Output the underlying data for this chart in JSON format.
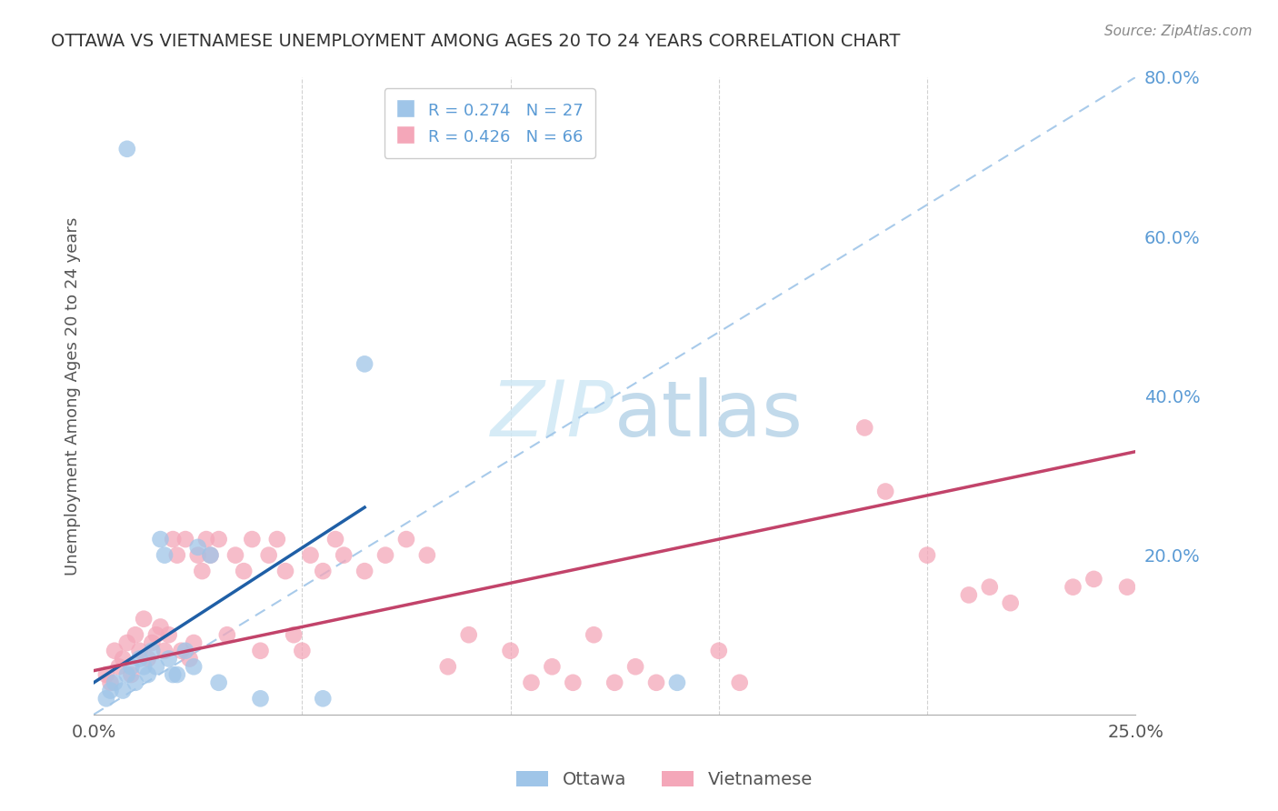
{
  "title": "OTTAWA VS VIETNAMESE UNEMPLOYMENT AMONG AGES 20 TO 24 YEARS CORRELATION CHART",
  "source": "Source: ZipAtlas.com",
  "ylabel": "Unemployment Among Ages 20 to 24 years",
  "xlim": [
    0.0,
    0.25
  ],
  "ylim": [
    0.0,
    0.8
  ],
  "xticks": [
    0.0,
    0.05,
    0.1,
    0.15,
    0.2,
    0.25
  ],
  "xtick_labels": [
    "0.0%",
    "",
    "",
    "",
    "",
    "25.0%"
  ],
  "yticks": [
    0.0,
    0.2,
    0.4,
    0.6,
    0.8
  ],
  "ytick_labels": [
    "",
    "20.0%",
    "40.0%",
    "60.0%",
    "80.0%"
  ],
  "ottawa_R": 0.274,
  "ottawa_N": 27,
  "vietnamese_R": 0.426,
  "vietnamese_N": 66,
  "ottawa_color": "#9fc5e8",
  "vietnamese_color": "#f4a7b9",
  "ottawa_line_color": "#1f5fa6",
  "vietnamese_line_color": "#c2436a",
  "diagonal_color": "#9fc5e8",
  "background_color": "#ffffff",
  "grid_color": "#cccccc",
  "watermark_color": "#cde8f5",
  "ottawa_x": [
    0.008,
    0.003,
    0.004,
    0.005,
    0.007,
    0.008,
    0.009,
    0.01,
    0.011,
    0.012,
    0.013,
    0.014,
    0.015,
    0.016,
    0.017,
    0.018,
    0.019,
    0.02,
    0.022,
    0.024,
    0.025,
    0.028,
    0.03,
    0.04,
    0.055,
    0.065,
    0.14
  ],
  "ottawa_y": [
    0.71,
    0.02,
    0.03,
    0.04,
    0.03,
    0.05,
    0.06,
    0.04,
    0.07,
    0.06,
    0.05,
    0.08,
    0.06,
    0.22,
    0.2,
    0.07,
    0.05,
    0.05,
    0.08,
    0.06,
    0.21,
    0.2,
    0.04,
    0.02,
    0.02,
    0.44,
    0.04
  ],
  "ottawa_regline_x": [
    0.0,
    0.065
  ],
  "ottawa_regline_y": [
    0.04,
    0.26
  ],
  "vietnamese_x": [
    0.003,
    0.004,
    0.005,
    0.006,
    0.007,
    0.008,
    0.009,
    0.01,
    0.011,
    0.012,
    0.013,
    0.014,
    0.015,
    0.016,
    0.017,
    0.018,
    0.019,
    0.02,
    0.021,
    0.022,
    0.023,
    0.024,
    0.025,
    0.026,
    0.027,
    0.028,
    0.03,
    0.032,
    0.034,
    0.036,
    0.038,
    0.04,
    0.042,
    0.044,
    0.046,
    0.048,
    0.05,
    0.052,
    0.055,
    0.058,
    0.06,
    0.065,
    0.07,
    0.075,
    0.08,
    0.085,
    0.09,
    0.1,
    0.105,
    0.11,
    0.115,
    0.12,
    0.125,
    0.13,
    0.135,
    0.15,
    0.155,
    0.185,
    0.19,
    0.2,
    0.21,
    0.215,
    0.22,
    0.235,
    0.24,
    0.248
  ],
  "vietnamese_y": [
    0.05,
    0.04,
    0.08,
    0.06,
    0.07,
    0.09,
    0.05,
    0.1,
    0.08,
    0.12,
    0.07,
    0.09,
    0.1,
    0.11,
    0.08,
    0.1,
    0.22,
    0.2,
    0.08,
    0.22,
    0.07,
    0.09,
    0.2,
    0.18,
    0.22,
    0.2,
    0.22,
    0.1,
    0.2,
    0.18,
    0.22,
    0.08,
    0.2,
    0.22,
    0.18,
    0.1,
    0.08,
    0.2,
    0.18,
    0.22,
    0.2,
    0.18,
    0.2,
    0.22,
    0.2,
    0.06,
    0.1,
    0.08,
    0.04,
    0.06,
    0.04,
    0.1,
    0.04,
    0.06,
    0.04,
    0.08,
    0.04,
    0.36,
    0.28,
    0.2,
    0.15,
    0.16,
    0.14,
    0.16,
    0.17,
    0.16
  ],
  "vietnamese_regline_x": [
    0.0,
    0.25
  ],
  "vietnamese_regline_y": [
    0.055,
    0.33
  ]
}
